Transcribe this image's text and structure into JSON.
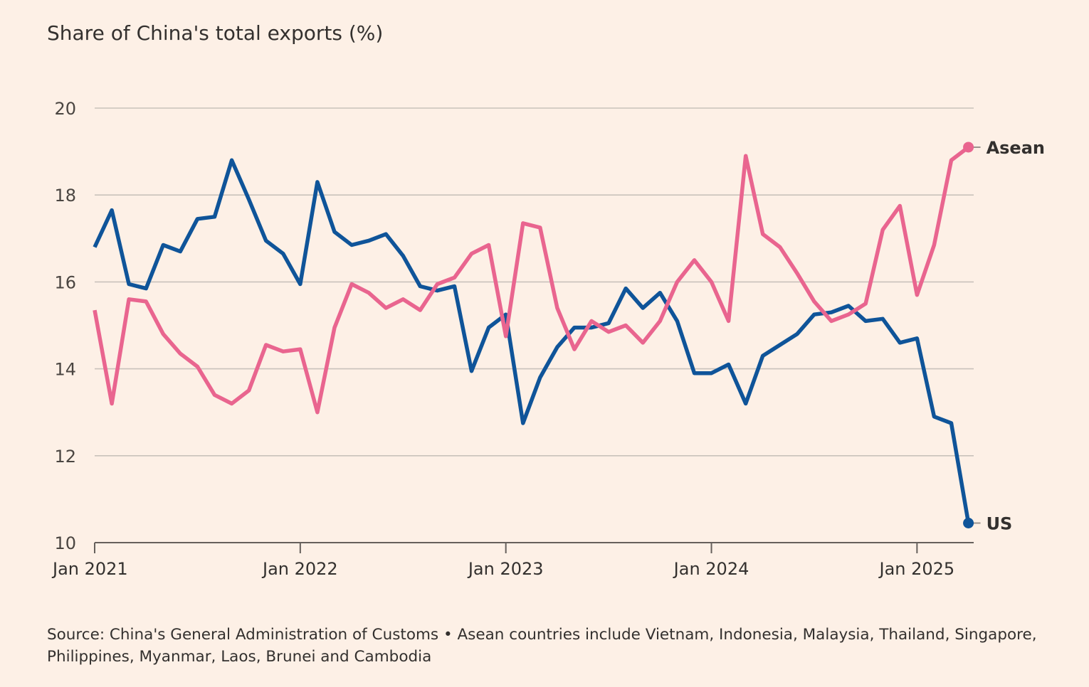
{
  "chart_data": {
    "type": "line",
    "title": "Share of China's total exports (%)",
    "source_note": "Source: China's General Administration of Customs • Asean countries include Vietnam, Indonesia, Malaysia, Thailand, Singapore, Philippines, Myanmar, Laos, Brunei and Cambodia",
    "xlabel": "",
    "ylabel": "",
    "ylim": [
      10,
      20
    ],
    "yticks": [
      10,
      12,
      14,
      16,
      18,
      20
    ],
    "xtick_labels": [
      "Jan 2021",
      "Jan 2022",
      "Jan 2023",
      "Jan 2024",
      "Jan 2025"
    ],
    "x_start": "2021-01",
    "x_end": "2025-04",
    "grid": true,
    "legend": "direct labels at line ends",
    "series": [
      {
        "name": "US",
        "color": "#0f5499",
        "values": [
          16.8,
          17.65,
          15.95,
          15.85,
          16.85,
          16.7,
          17.45,
          17.5,
          18.8,
          17.9,
          16.95,
          16.65,
          15.95,
          18.3,
          17.15,
          16.85,
          16.95,
          17.1,
          16.6,
          15.9,
          15.8,
          15.9,
          13.95,
          14.95,
          15.25,
          12.75,
          13.8,
          14.5,
          14.95,
          14.95,
          15.05,
          15.85,
          15.4,
          15.75,
          15.1,
          13.9,
          13.9,
          14.1,
          13.2,
          14.3,
          14.55,
          14.8,
          15.25,
          15.3,
          15.45,
          15.1,
          15.15,
          14.6,
          14.7,
          12.9,
          12.75,
          10.45
        ]
      },
      {
        "name": "Asean",
        "color": "#e9658f",
        "values": [
          15.35,
          13.2,
          15.6,
          15.55,
          14.8,
          14.35,
          14.05,
          13.4,
          13.2,
          13.5,
          14.55,
          14.4,
          14.45,
          13.0,
          14.95,
          15.95,
          15.75,
          15.4,
          15.6,
          15.35,
          15.95,
          16.1,
          16.65,
          16.85,
          14.75,
          17.35,
          17.25,
          15.4,
          14.45,
          15.1,
          14.85,
          15.0,
          14.6,
          15.1,
          16.0,
          16.5,
          16.0,
          15.1,
          18.9,
          17.1,
          16.8,
          16.2,
          15.55,
          15.1,
          15.25,
          15.5,
          17.2,
          17.75,
          15.7,
          16.85,
          18.8,
          19.1
        ]
      }
    ]
  }
}
